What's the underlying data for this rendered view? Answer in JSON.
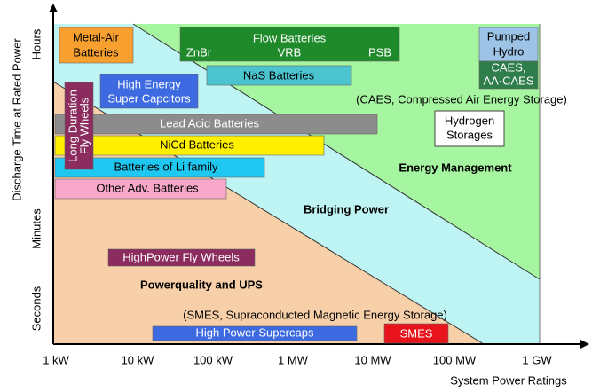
{
  "axes": {
    "y_title": "Discharge Time at Rated Power",
    "x_title": "System Power Ratings",
    "y_labels": [
      "Hours",
      "Minutes",
      "Seconds"
    ],
    "x_labels": [
      "1 kW",
      "10 kW",
      "100 kW",
      "1 MW",
      "10 MW",
      "100 MW",
      "1 GW"
    ]
  },
  "regions": [
    "Energy Management",
    "Bridging Power",
    "Powerquality and UPS"
  ],
  "technologies": [
    {
      "lines": [
        "Metal-Air",
        "Batteries"
      ]
    },
    {
      "lines": [
        "Flow Batteries",
        "ZnBr",
        "VRB",
        "PSB"
      ]
    },
    {
      "lines": [
        "Pumped",
        "Hydro"
      ]
    },
    {
      "lines": [
        "CAES,",
        "AA-CAES"
      ]
    },
    {
      "lines": [
        "NaS Batteries"
      ]
    },
    {
      "lines": [
        "High Energy",
        "Super Capcitors"
      ]
    },
    {
      "lines": [
        "Long Duration",
        "Fly Wheels"
      ]
    },
    {
      "lines": [
        "Lead Acid Batteries"
      ]
    },
    {
      "lines": [
        "Hydrogen",
        "Storages"
      ]
    },
    {
      "lines": [
        "NiCd Batteries"
      ]
    },
    {
      "lines": [
        "Batteries of Li family"
      ]
    },
    {
      "lines": [
        "Other Adv. Batteries"
      ]
    },
    {
      "lines": [
        "HighPower Fly Wheels"
      ]
    },
    {
      "lines": [
        "SMES"
      ]
    },
    {
      "lines": [
        "High Power Supercaps"
      ]
    }
  ],
  "notes": [
    "(CAES, Compressed Air Energy Storage)",
    "(SMES, Supraconducted Magnetic Energy Storage)"
  ]
}
